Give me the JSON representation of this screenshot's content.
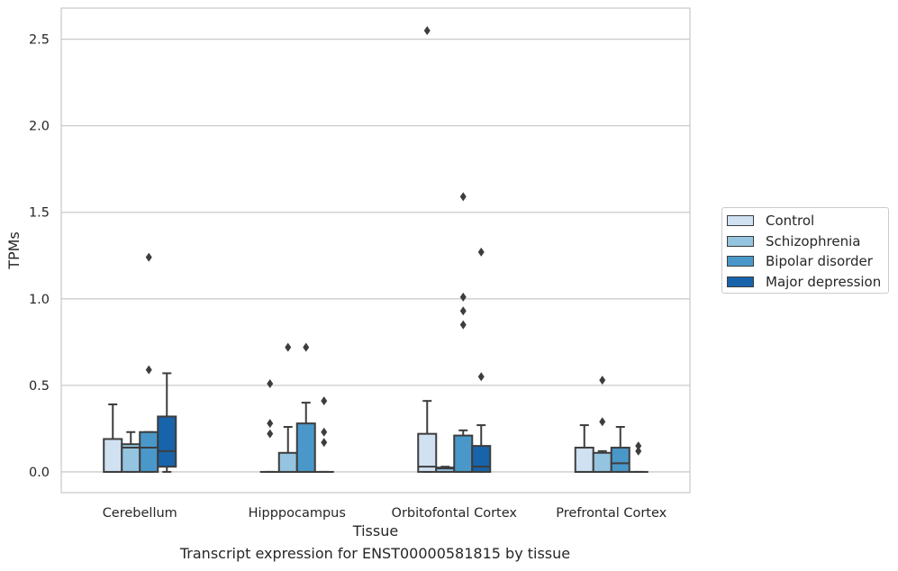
{
  "caption": "Transcript expression for ENST00000581815 by tissue",
  "colors": {
    "Control": "#d0e1f2",
    "Schizophrenia": "#94c4df",
    "Bipolar disorder": "#4a98c9",
    "Major depression": "#1764ab",
    "edge": "#3d3d3d",
    "grid": "#cccccc"
  },
  "chart_data": {
    "type": "boxplot",
    "title": "",
    "xlabel": "Tissue",
    "ylabel": "TPMs",
    "ylim": [
      -0.12,
      2.68
    ],
    "yticks": [
      0.0,
      0.5,
      1.0,
      1.5,
      2.0,
      2.5
    ],
    "ytick_labels": [
      "0.0",
      "0.5",
      "1.0",
      "1.5",
      "2.0",
      "2.5"
    ],
    "grid": "horizontal",
    "legend_position": "right",
    "categories": [
      "Cerebellum",
      "Hipppocampus",
      "Orbitofontal Cortex",
      "Prefrontal Cortex"
    ],
    "series": [
      {
        "name": "Control",
        "boxes": [
          {
            "whislo": 0.0,
            "q1": 0.0,
            "med": 0.0,
            "q3": 0.19,
            "whishi": 0.39,
            "fliers": []
          },
          {
            "whislo": 0.0,
            "q1": 0.0,
            "med": 0.0,
            "q3": 0.0,
            "whishi": 0.0,
            "fliers": [
              0.51,
              0.28,
              0.22
            ]
          },
          {
            "whislo": 0.0,
            "q1": 0.0,
            "med": 0.03,
            "q3": 0.22,
            "whishi": 0.41,
            "fliers": [
              2.55
            ]
          },
          {
            "whislo": 0.0,
            "q1": 0.0,
            "med": 0.0,
            "q3": 0.14,
            "whishi": 0.27,
            "fliers": []
          }
        ]
      },
      {
        "name": "Schizophrenia",
        "boxes": [
          {
            "whislo": 0.0,
            "q1": 0.0,
            "med": 0.14,
            "q3": 0.16,
            "whishi": 0.23,
            "fliers": []
          },
          {
            "whislo": 0.0,
            "q1": 0.0,
            "med": 0.0,
            "q3": 0.11,
            "whishi": 0.26,
            "fliers": [
              0.72
            ]
          },
          {
            "whislo": 0.0,
            "q1": 0.0,
            "med": 0.02,
            "q3": 0.025,
            "whishi": 0.03,
            "fliers": []
          },
          {
            "whislo": 0.0,
            "q1": 0.0,
            "med": 0.0,
            "q3": 0.11,
            "whishi": 0.12,
            "fliers": [
              0.53,
              0.29
            ]
          }
        ]
      },
      {
        "name": "Bipolar disorder",
        "boxes": [
          {
            "whislo": 0.0,
            "q1": 0.0,
            "med": 0.14,
            "q3": 0.23,
            "whishi": 0.23,
            "fliers": [
              1.24,
              0.59
            ]
          },
          {
            "whislo": 0.0,
            "q1": 0.0,
            "med": 0.0,
            "q3": 0.28,
            "whishi": 0.4,
            "fliers": [
              0.72
            ]
          },
          {
            "whislo": 0.0,
            "q1": 0.0,
            "med": 0.0,
            "q3": 0.21,
            "whishi": 0.24,
            "fliers": [
              1.59,
              1.01,
              0.93,
              0.85
            ]
          },
          {
            "whislo": 0.0,
            "q1": 0.0,
            "med": 0.05,
            "q3": 0.14,
            "whishi": 0.26,
            "fliers": []
          }
        ]
      },
      {
        "name": "Major depression",
        "boxes": [
          {
            "whislo": 0.0,
            "q1": 0.03,
            "med": 0.12,
            "q3": 0.32,
            "whishi": 0.57,
            "fliers": []
          },
          {
            "whislo": 0.0,
            "q1": 0.0,
            "med": 0.0,
            "q3": 0.0,
            "whishi": 0.0,
            "fliers": [
              0.41,
              0.23,
              0.17
            ]
          },
          {
            "whislo": 0.0,
            "q1": 0.0,
            "med": 0.03,
            "q3": 0.15,
            "whishi": 0.27,
            "fliers": [
              1.27,
              0.55
            ]
          },
          {
            "whislo": 0.0,
            "q1": 0.0,
            "med": 0.0,
            "q3": 0.0,
            "whishi": 0.0,
            "fliers": [
              0.15,
              0.12
            ]
          }
        ]
      }
    ]
  }
}
